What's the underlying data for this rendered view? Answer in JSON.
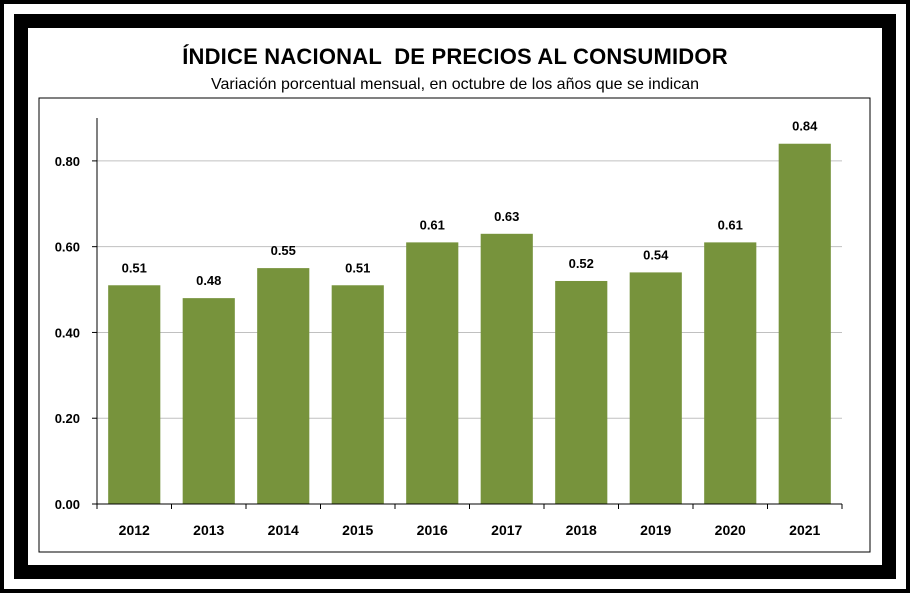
{
  "chart_data": {
    "type": "bar",
    "title": "ÍNDICE NACIONAL  DE PRECIOS AL CONSUMIDOR",
    "subtitle": "Variación porcentual mensual, en octubre de los años que se indican",
    "categories": [
      "2012",
      "2013",
      "2014",
      "2015",
      "2016",
      "2017",
      "2018",
      "2019",
      "2020",
      "2021"
    ],
    "values": [
      0.51,
      0.48,
      0.55,
      0.51,
      0.61,
      0.63,
      0.52,
      0.54,
      0.61,
      0.84
    ],
    "value_labels": [
      "0.51",
      "0.48",
      "0.55",
      "0.51",
      "0.61",
      "0.63",
      "0.52",
      "0.54",
      "0.61",
      "0.84"
    ],
    "yticks": [
      "0.00",
      "0.20",
      "0.40",
      "0.60",
      "0.80"
    ],
    "ytick_values": [
      0,
      0.2,
      0.4,
      0.6,
      0.8
    ],
    "ylim": [
      0,
      0.9
    ],
    "xlabel": "",
    "ylabel": "",
    "grid": true,
    "bar_color": "#77933c",
    "grid_color": "#c0c0c0",
    "legend": "none"
  }
}
